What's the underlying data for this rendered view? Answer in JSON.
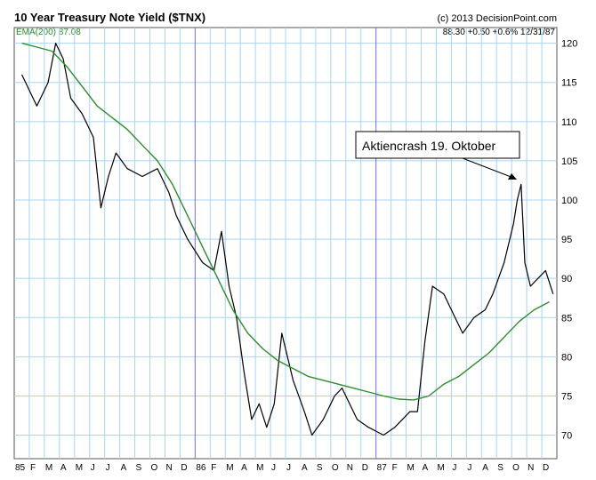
{
  "header": {
    "title": "10 Year Treasury Note Yield ($TNX)",
    "copyright": "(c) 2013 DecisionPoint.com",
    "stats": "88.30 +0.50 +0.6% 12/31/87",
    "ema_label": "EMA(200) 87.08"
  },
  "annotation": {
    "text": "Aktiencrash 19. Oktober"
  },
  "colors": {
    "background": "#ffffff",
    "grid": "#a8d4f0",
    "year_separator": "#7b68ee",
    "price_line": "#000000",
    "ema_line": "#2e8b2e",
    "ema_label": "#2e8b2e"
  },
  "chart_data": {
    "type": "line",
    "title": "10 Year Treasury Note Yield ($TNX)",
    "xlabel": "",
    "ylabel": "",
    "ylim": [
      67,
      122
    ],
    "yticks": [
      70,
      75,
      80,
      85,
      90,
      95,
      100,
      105,
      110,
      115,
      120
    ],
    "x_tick_labels": [
      "85",
      "F",
      "M",
      "A",
      "M",
      "J",
      "J",
      "A",
      "S",
      "O",
      "N",
      "D",
      "86",
      "F",
      "M",
      "A",
      "M",
      "J",
      "J",
      "A",
      "S",
      "O",
      "N",
      "D",
      "87",
      "F",
      "M",
      "A",
      "M",
      "J",
      "J",
      "A",
      "S",
      "O",
      "N",
      "D"
    ],
    "year_separators": [
      "86",
      "87"
    ],
    "grid": true,
    "series": [
      {
        "name": "$TNX",
        "x": [
          "1985-01",
          "1985-02",
          "1985-03",
          "1985-03",
          "1985-04",
          "1985-04",
          "1985-05",
          "1985-06",
          "1985-06",
          "1985-07",
          "1985-07",
          "1985-08",
          "1985-09",
          "1985-10",
          "1985-11",
          "1985-11",
          "1985-12",
          "1986-01",
          "1986-02",
          "1986-02",
          "1986-03",
          "1986-03",
          "1986-04",
          "1986-04",
          "1986-05",
          "1986-05",
          "1986-06",
          "1986-06",
          "1986-07",
          "1986-08",
          "1986-08",
          "1986-09",
          "1986-10",
          "1986-10",
          "1986-11",
          "1986-11",
          "1986-12",
          "1987-01",
          "1987-02",
          "1987-02",
          "1987-03",
          "1987-03",
          "1987-04",
          "1987-04",
          "1987-05",
          "1987-06",
          "1987-06",
          "1987-07",
          "1987-08",
          "1987-08",
          "1987-09",
          "1987-10",
          "1987-10",
          "1987-10",
          "1987-10",
          "1987-11",
          "1987-11",
          "1987-12",
          "1987-12"
        ],
        "values": [
          116,
          112,
          115,
          120,
          118,
          113,
          111,
          108,
          99,
          103,
          106,
          104,
          103,
          104,
          101,
          98,
          95,
          92,
          91,
          96,
          89,
          85,
          78,
          72,
          74,
          71,
          74,
          83,
          77,
          73,
          70,
          72,
          75,
          76,
          74,
          72,
          71,
          70,
          71,
          72,
          73,
          73,
          82,
          89,
          88,
          85,
          83,
          85,
          86,
          88,
          92,
          97,
          100,
          102,
          92,
          89,
          90,
          91,
          88
        ]
      },
      {
        "name": "EMA(200)",
        "x": [
          "1985-01",
          "1985-02",
          "1985-03",
          "1985-04",
          "1985-06",
          "1985-08",
          "1985-09",
          "1985-10",
          "1985-11",
          "1985-12",
          "1986-01",
          "1986-02",
          "1986-03",
          "1986-04",
          "1986-05",
          "1986-06",
          "1986-07",
          "1986-08",
          "1986-09",
          "1986-10",
          "1986-11",
          "1986-12",
          "1987-01",
          "1987-02",
          "1987-03",
          "1987-04",
          "1987-05",
          "1987-06",
          "1987-07",
          "1987-08",
          "1987-09",
          "1987-10",
          "1987-11",
          "1987-12"
        ],
        "values": [
          120,
          119.5,
          119,
          117,
          112,
          109,
          107,
          105,
          102,
          98,
          94,
          90,
          86,
          83,
          81,
          79.5,
          78.5,
          77.5,
          77,
          76.5,
          76,
          75.5,
          75,
          74.6,
          74.5,
          75,
          76.5,
          77.5,
          79,
          80.5,
          82.5,
          84.5,
          86,
          87
        ]
      }
    ]
  }
}
